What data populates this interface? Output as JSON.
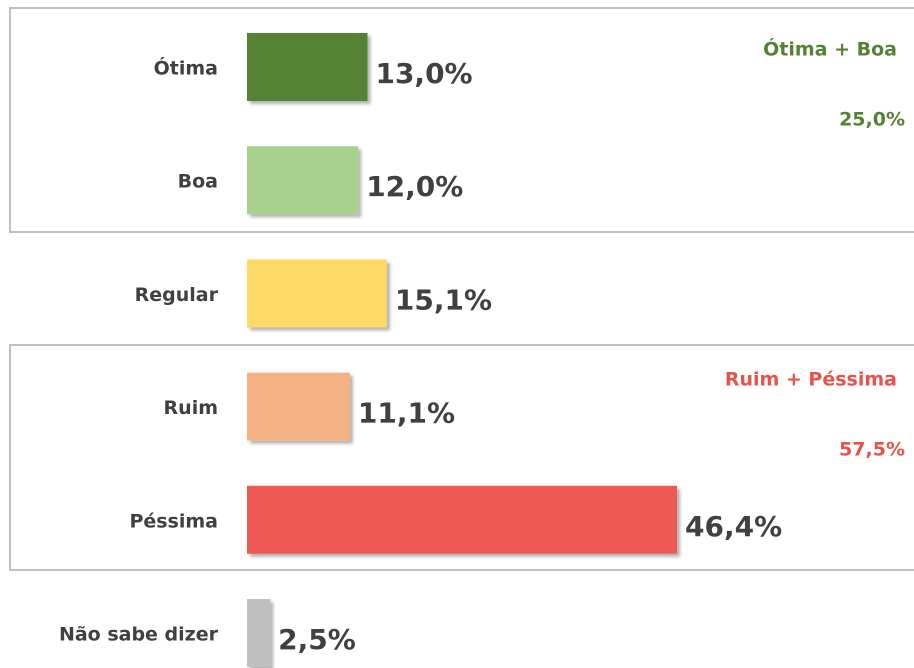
{
  "chart_data": {
    "type": "barh",
    "categories": [
      "Ótima",
      "Boa",
      "Regular",
      "Ruim",
      "Péssima",
      "Não sabe dizer"
    ],
    "values": [
      13.0,
      12.0,
      15.1,
      11.1,
      46.4,
      2.5
    ],
    "value_labels": [
      "13,0%",
      "12,0%",
      "15,1%",
      "11,1%",
      "46,4%",
      "2,5%"
    ],
    "colors": [
      "#548235",
      "#a9d18e",
      "#ffd966",
      "#f4b183",
      "#ee5a52",
      "#bfbfbf"
    ],
    "annotations": [
      {
        "text": "Ótima + Boa",
        "label": "25,0%",
        "color": "#548235"
      },
      {
        "text": "Ruim + Péssima",
        "label": "57,5%",
        "color": "#e8524a"
      }
    ]
  }
}
